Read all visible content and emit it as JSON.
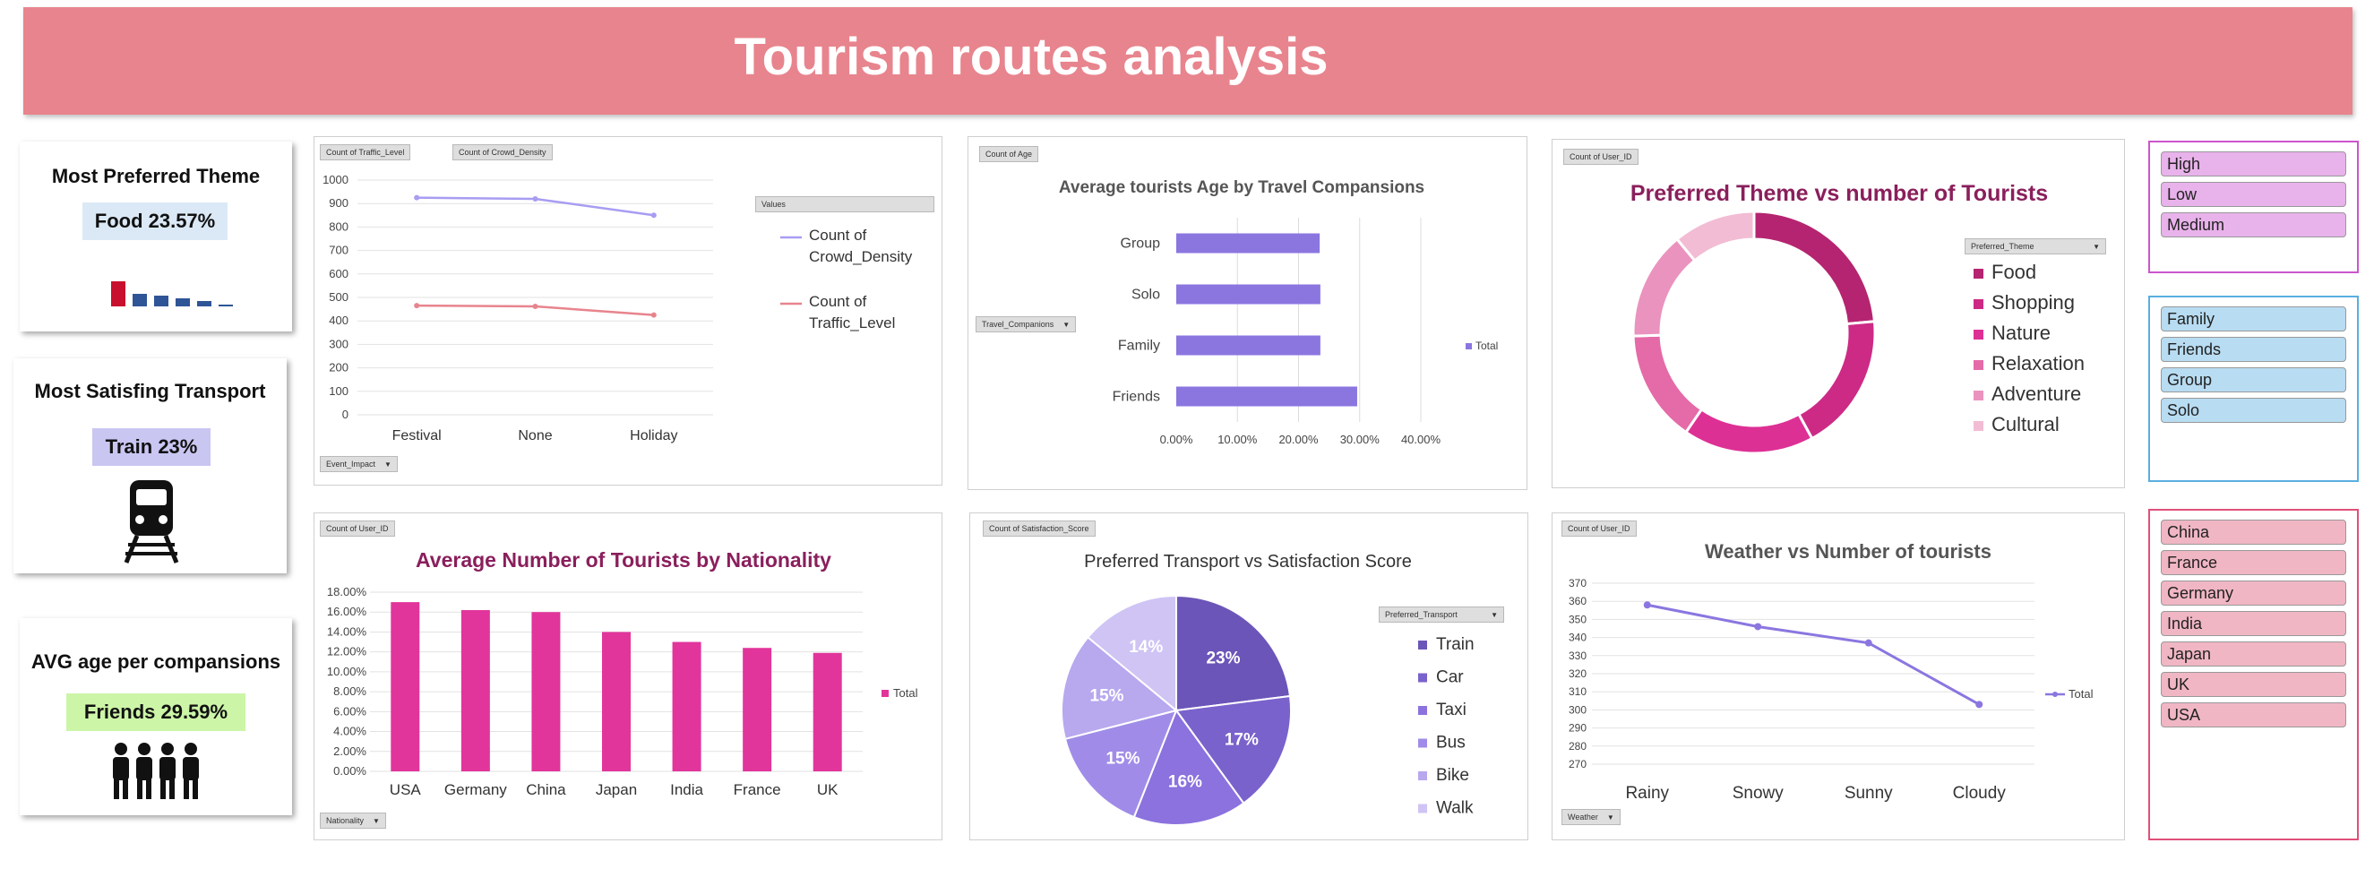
{
  "title": "Tourism routes analysis",
  "kpis": [
    {
      "title": "Most Preferred Theme",
      "value": "Food 23.57%",
      "color": "#dbe9f6"
    },
    {
      "title": "Most Satisfing Transport",
      "value": "Train 23%",
      "color": "#c9c6f2"
    },
    {
      "title": "AVG age per compansions",
      "value": "Friends 29.59%",
      "color": "#ccf5a8"
    }
  ],
  "kpi_icons": [
    "bar-mini-icon",
    "train-icon",
    "group-people-icon"
  ],
  "chart1": {
    "field_buttons": [
      "Count of Traffic_Level",
      "Count of Crowd_Density"
    ],
    "legend_header": "Values",
    "bottom_button": "Event_Impact"
  },
  "chart2": {
    "field_button": "Count of Age",
    "filter_button": "Travel_Companions",
    "legend": "Total"
  },
  "chart3": {
    "field_button": "Count of User_ID",
    "filter_button": "Preferred_Theme"
  },
  "chart4": {
    "field_button": "Count of User_ID",
    "bottom_button": "Nationality",
    "legend": "Total"
  },
  "chart5": {
    "field_button": "Count of Satisfaction_Score",
    "filter_button": "Preferred_Transport"
  },
  "chart6": {
    "field_button": "Count of User_ID",
    "bottom_button": "Weather",
    "legend": "Total"
  },
  "slicers": {
    "crowd": {
      "items": [
        "High",
        "Low",
        "Medium"
      ],
      "color": "#e8b2ea",
      "border": "#cc55cc"
    },
    "companions": {
      "items": [
        "Family",
        "Friends",
        "Group",
        "Solo"
      ],
      "color": "#b8dcf2",
      "border": "#5aaee0"
    },
    "nationality": {
      "items": [
        "China",
        "France",
        "Germany",
        "India",
        "Japan",
        "UK",
        "USA"
      ],
      "color": "#f0b6c4",
      "border": "#e0507a"
    }
  },
  "chart_data": [
    {
      "type": "line",
      "title": "",
      "categories": [
        "Festival",
        "None",
        "Holiday"
      ],
      "ylim": [
        0,
        1000
      ],
      "yticks": [
        0,
        100,
        200,
        300,
        400,
        500,
        600,
        700,
        800,
        900,
        1000
      ],
      "series": [
        {
          "name": "Count of Crowd_Density",
          "values": [
            925,
            920,
            850
          ],
          "color": "#a79df2"
        },
        {
          "name": "Count of Traffic_Level",
          "values": [
            465,
            462,
            425
          ],
          "color": "#e8848d"
        }
      ],
      "legend": "right",
      "grid": true
    },
    {
      "type": "bar",
      "orientation": "horizontal",
      "title": "Average tourists Age by Travel Compansions",
      "categories": [
        "Group",
        "Solo",
        "Family",
        "Friends"
      ],
      "values": [
        0.2346,
        0.2357,
        0.2357,
        0.2959
      ],
      "xticks": [
        "0.00%",
        "10.00%",
        "20.00%",
        "30.00%",
        "40.00%"
      ],
      "xlim": [
        0,
        0.4
      ],
      "series_name": "Total",
      "color": "#8b76e0"
    },
    {
      "type": "pie",
      "donut": true,
      "title": "Preferred Theme vs number of Tourists",
      "labels": [
        "Food",
        "Shopping",
        "Nature",
        "Relaxation",
        "Adventure",
        "Cultural"
      ],
      "values": [
        23.57,
        18.5,
        17.5,
        15.0,
        14.5,
        11.0
      ],
      "colors": [
        "#b52470",
        "#cc2a85",
        "#dd3094",
        "#e56aa8",
        "#ea93be",
        "#f2bcd4"
      ]
    },
    {
      "type": "bar",
      "title": "Average Number of Tourists by Nationality",
      "categories": [
        "USA",
        "Germany",
        "China",
        "Japan",
        "India",
        "France",
        "UK"
      ],
      "values": [
        0.17,
        0.162,
        0.16,
        0.14,
        0.13,
        0.124,
        0.119
      ],
      "ylim": [
        0,
        0.18
      ],
      "yticks": [
        "0.00%",
        "2.00%",
        "4.00%",
        "6.00%",
        "8.00%",
        "10.00%",
        "12.00%",
        "14.00%",
        "16.00%",
        "18.00%"
      ],
      "series_name": "Total",
      "color": "#e1359b"
    },
    {
      "type": "pie",
      "title": "Preferred Transport vs Satisfaction Score",
      "labels": [
        "Train",
        "Car",
        "Taxi",
        "Bus",
        "Bike",
        "Walk"
      ],
      "values": [
        23,
        17,
        16,
        15,
        15,
        14
      ],
      "data_labels": [
        "23%",
        "17%",
        "16%",
        "15%",
        "15%",
        "14%"
      ],
      "colors": [
        "#6c55b8",
        "#7a62cc",
        "#8b72de",
        "#a08ce8",
        "#b8a8ee",
        "#cfc4f4"
      ]
    },
    {
      "type": "line",
      "title": "Weather vs Number of tourists",
      "categories": [
        "Rainy",
        "Snowy",
        "Sunny",
        "Cloudy"
      ],
      "values": [
        358,
        346,
        337,
        303
      ],
      "ylim": [
        270,
        370
      ],
      "yticks": [
        270,
        280,
        290,
        300,
        310,
        320,
        330,
        340,
        350,
        360,
        370
      ],
      "series_name": "Total",
      "color": "#8b76e0"
    }
  ]
}
